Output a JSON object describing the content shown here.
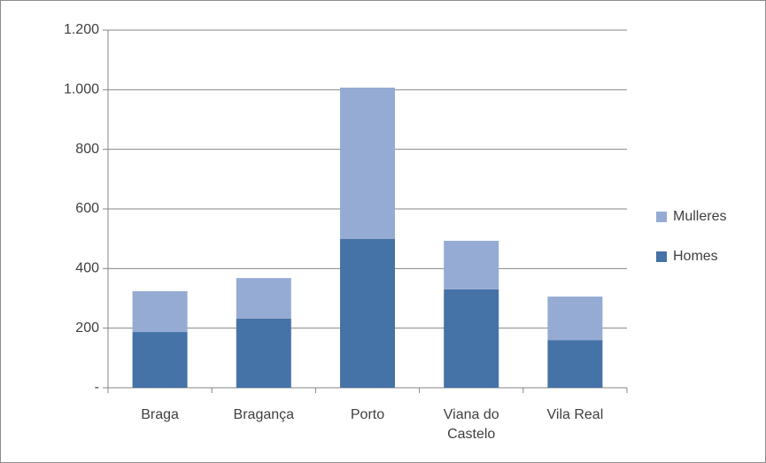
{
  "chart_data": {
    "type": "stacked-bar",
    "categories": [
      "Braga",
      "Bragança",
      "Porto",
      "Viana do Castelo",
      "Vila Real"
    ],
    "series": [
      {
        "name": "Homes",
        "color": "#4572a7",
        "values": [
          187,
          232,
          499,
          330,
          160
        ]
      },
      {
        "name": "Mulleres",
        "color": "#95abd3",
        "values": [
          137,
          136,
          508,
          163,
          146
        ]
      }
    ],
    "ylim": [
      0,
      1200
    ],
    "yticks": [
      {
        "value": 0,
        "label": "-"
      },
      200,
      400,
      600,
      800,
      {
        "value": 1000,
        "label": "1.000"
      },
      {
        "value": 1200,
        "label": "1.200"
      }
    ],
    "grid": true,
    "legend": "right"
  }
}
